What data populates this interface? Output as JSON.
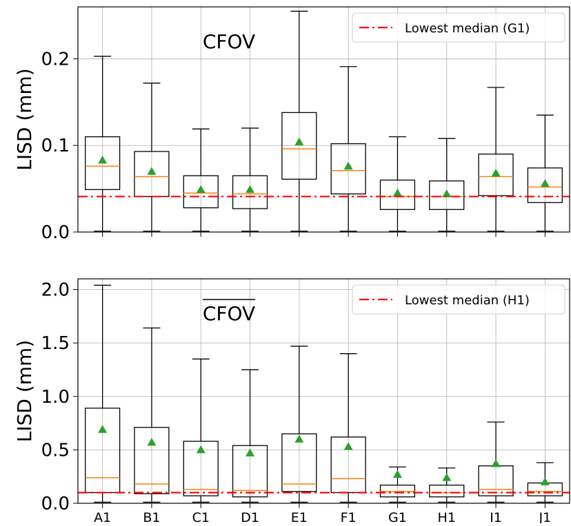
{
  "colors": {
    "box": "#000000",
    "median": "#ff7f0e",
    "mean": "#2ca02c",
    "ref_line": "#ff0000",
    "grid": "#b0b0b0"
  },
  "chart_data": [
    {
      "type": "box",
      "title": "CFOV",
      "title_overline": false,
      "ylabel": "LISD (mm)",
      "xlabel": "",
      "ylim": [
        0,
        0.26
      ],
      "yticks": [
        0.0,
        0.1,
        0.2
      ],
      "ytick_labels": [
        "0.0",
        "0.1",
        "0.2"
      ],
      "grid": true,
      "legend": {
        "placement": "top-right",
        "entries": [
          "Lowest median (G1)"
        ]
      },
      "categories": [
        "A1",
        "B1",
        "C1",
        "D1",
        "E1",
        "F1",
        "G1",
        "H1",
        "I1",
        "J1"
      ],
      "show_xticklabels": false,
      "reference_line": {
        "label": "Lowest median (G1)",
        "value": 0.041,
        "style": "dashdot"
      },
      "boxes": [
        {
          "min": 0.001,
          "q1": 0.049,
          "median": 0.076,
          "q3": 0.11,
          "max": 0.203,
          "mean": 0.083
        },
        {
          "min": 0.001,
          "q1": 0.041,
          "median": 0.064,
          "q3": 0.093,
          "max": 0.172,
          "mean": 0.07
        },
        {
          "min": 0.001,
          "q1": 0.028,
          "median": 0.045,
          "q3": 0.065,
          "max": 0.119,
          "mean": 0.049
        },
        {
          "min": 0.001,
          "q1": 0.027,
          "median": 0.044,
          "q3": 0.065,
          "max": 0.12,
          "mean": 0.049
        },
        {
          "min": 0.001,
          "q1": 0.061,
          "median": 0.096,
          "q3": 0.138,
          "max": 0.255,
          "mean": 0.104
        },
        {
          "min": 0.001,
          "q1": 0.044,
          "median": 0.071,
          "q3": 0.102,
          "max": 0.191,
          "mean": 0.076
        },
        {
          "min": 0.001,
          "q1": 0.026,
          "median": 0.041,
          "q3": 0.06,
          "max": 0.11,
          "mean": 0.045
        },
        {
          "min": 0.001,
          "q1": 0.026,
          "median": 0.041,
          "q3": 0.059,
          "max": 0.108,
          "mean": 0.044
        },
        {
          "min": 0.001,
          "q1": 0.042,
          "median": 0.064,
          "q3": 0.09,
          "max": 0.167,
          "mean": 0.068
        },
        {
          "min": 0.001,
          "q1": 0.034,
          "median": 0.052,
          "q3": 0.074,
          "max": 0.135,
          "mean": 0.056
        }
      ]
    },
    {
      "type": "box",
      "title": "CFOV",
      "title_overline": true,
      "ylabel": "LISD (mm)",
      "xlabel": "",
      "ylim": [
        0,
        2.1
      ],
      "yticks": [
        0.0,
        0.5,
        1.0,
        1.5,
        2.0
      ],
      "ytick_labels": [
        "0.0",
        "0.5",
        "1.0",
        "1.5",
        "2.0"
      ],
      "grid": true,
      "legend": {
        "placement": "top-right",
        "entries": [
          "Lowest median (H1)"
        ]
      },
      "categories": [
        "A1",
        "B1",
        "C1",
        "D1",
        "E1",
        "F1",
        "G1",
        "H1",
        "I1",
        "J1"
      ],
      "show_xticklabels": true,
      "reference_line": {
        "label": "Lowest median (H1)",
        "value": 0.1,
        "style": "dashdot"
      },
      "boxes": [
        {
          "min": 0.01,
          "q1": 0.1,
          "median": 0.24,
          "q3": 0.89,
          "max": 2.04,
          "mean": 0.69
        },
        {
          "min": 0.01,
          "q1": 0.09,
          "median": 0.18,
          "q3": 0.71,
          "max": 1.64,
          "mean": 0.57
        },
        {
          "min": 0.01,
          "q1": 0.07,
          "median": 0.13,
          "q3": 0.58,
          "max": 1.35,
          "mean": 0.5
        },
        {
          "min": 0.01,
          "q1": 0.06,
          "median": 0.12,
          "q3": 0.54,
          "max": 1.25,
          "mean": 0.47
        },
        {
          "min": 0.01,
          "q1": 0.11,
          "median": 0.18,
          "q3": 0.65,
          "max": 1.47,
          "mean": 0.6
        },
        {
          "min": 0.01,
          "q1": 0.1,
          "median": 0.23,
          "q3": 0.62,
          "max": 1.4,
          "mean": 0.53
        },
        {
          "min": 0.01,
          "q1": 0.06,
          "median": 0.11,
          "q3": 0.17,
          "max": 0.34,
          "mean": 0.27
        },
        {
          "min": 0.01,
          "q1": 0.06,
          "median": 0.1,
          "q3": 0.17,
          "max": 0.33,
          "mean": 0.24
        },
        {
          "min": 0.01,
          "q1": 0.07,
          "median": 0.13,
          "q3": 0.35,
          "max": 0.76,
          "mean": 0.37
        },
        {
          "min": 0.01,
          "q1": 0.07,
          "median": 0.11,
          "q3": 0.19,
          "max": 0.38,
          "mean": 0.2
        }
      ]
    }
  ]
}
